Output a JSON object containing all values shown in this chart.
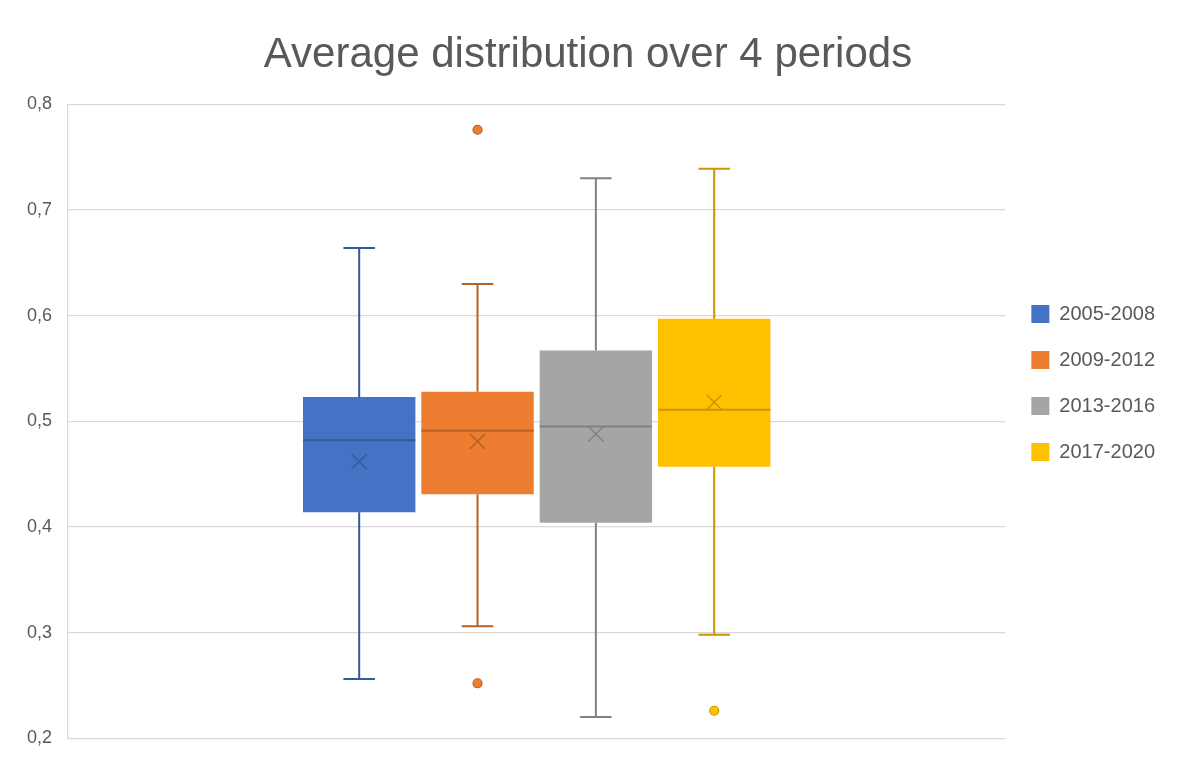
{
  "chart_data": {
    "type": "box",
    "title": "Average distribution over 4 periods",
    "categories": [
      null
    ],
    "ylim": [
      0.2,
      0.8
    ],
    "yticks": [
      {
        "value": 0.2,
        "label": "0,2"
      },
      {
        "value": 0.3,
        "label": "0,3"
      },
      {
        "value": 0.4,
        "label": "0,4"
      },
      {
        "value": 0.5,
        "label": "0,5"
      },
      {
        "value": 0.6,
        "label": "0,6"
      },
      {
        "value": 0.7,
        "label": "0,7"
      },
      {
        "value": 0.8,
        "label": "0,8"
      }
    ],
    "grid": "y",
    "legend": "right",
    "series": [
      {
        "name": "2005-2008",
        "color": "#4472c4",
        "boxes": [
          {
            "low": 0.256,
            "q1": 0.414,
            "median": 0.482,
            "q3": 0.523,
            "high": 0.664,
            "mean": 0.462
          }
        ]
      },
      {
        "name": "2009-2012",
        "color": "#ed7d31",
        "boxes": [
          {
            "low": 0.306,
            "q1": 0.431,
            "median": 0.491,
            "q3": 0.528,
            "high": 0.63,
            "mean": 0.481,
            "outliers": [
              0.776,
              0.252
            ]
          }
        ]
      },
      {
        "name": "2013-2016",
        "color": "#a5a5a5",
        "boxes": [
          {
            "low": 0.22,
            "q1": 0.404,
            "median": 0.495,
            "q3": 0.567,
            "high": 0.73,
            "mean": 0.488
          }
        ]
      },
      {
        "name": "2017-2020",
        "color": "#ffc000",
        "boxes": [
          {
            "low": 0.298,
            "q1": 0.457,
            "median": 0.511,
            "q3": 0.597,
            "high": 0.739,
            "mean": 0.518,
            "outliers": [
              0.226
            ]
          }
        ]
      }
    ]
  }
}
